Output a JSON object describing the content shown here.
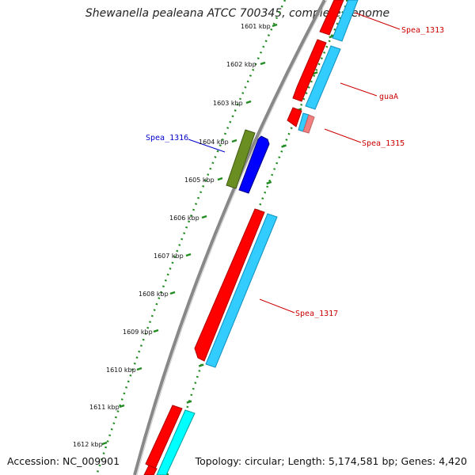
{
  "title": "Shewanella pealeana ATCC 700345, complete genome",
  "footer": {
    "accession": "Accession: NC_009901",
    "topology": "Topology: circular; Length: 5,174,581 bp; Genes: 4,420"
  },
  "tick_labels": [
    "1601 kbp",
    "1602 kbp",
    "1603 kbp",
    "1604 kbp",
    "1605 kbp",
    "1606 kbp",
    "1607 kbp",
    "1608 kbp",
    "1609 kbp",
    "1610 kbp",
    "1611 kbp",
    "1612 kbp"
  ],
  "gene_labels": {
    "spea_1313": "Spea_1313",
    "guaA": "guaA",
    "spea_1315": "Spea_1315",
    "spea_1316": "Spea_1316",
    "spea_1317": "Spea_1317"
  },
  "colors": {
    "cds_forward": "#ff0000",
    "gene_forward": "#33ccff",
    "cds_reverse": "#0000ff",
    "gene_reverse": "#669933",
    "backbone": "#888888",
    "tick_track": "#228b22",
    "label_red": "#cc0000",
    "label_blue": "#0000cc"
  }
}
